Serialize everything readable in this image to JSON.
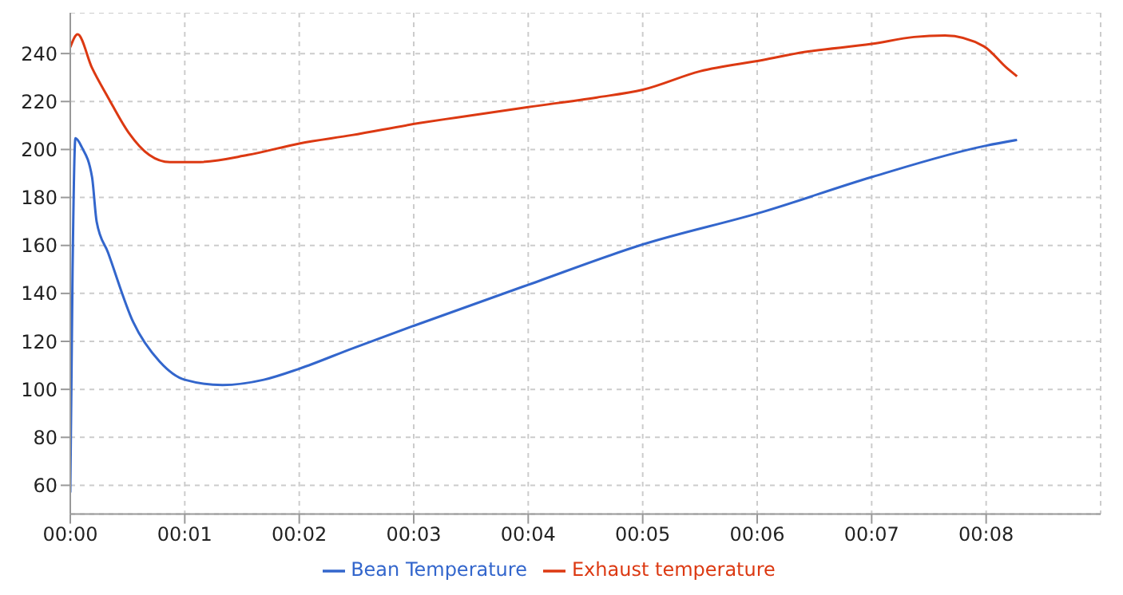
{
  "chart_data": {
    "type": "line",
    "xlim": [
      0,
      9
    ],
    "ylim": [
      48,
      257
    ],
    "xticks": [
      {
        "value": 0,
        "label": "00:00"
      },
      {
        "value": 1,
        "label": "00:01"
      },
      {
        "value": 2,
        "label": "00:02"
      },
      {
        "value": 3,
        "label": "00:03"
      },
      {
        "value": 4,
        "label": "00:04"
      },
      {
        "value": 5,
        "label": "00:05"
      },
      {
        "value": 6,
        "label": "00:06"
      },
      {
        "value": 7,
        "label": "00:07"
      },
      {
        "value": 8,
        "label": "00:08"
      }
    ],
    "yticks": [
      60,
      80,
      100,
      120,
      140,
      160,
      180,
      200,
      220,
      240
    ],
    "grid": true,
    "legend": "bottom",
    "marker": "none",
    "line_style": "solid",
    "series": [
      {
        "name": "Bean Temperature",
        "color": "#3366cc",
        "x": [
          0,
          0.02,
          0.045,
          0.1,
          0.19,
          0.23,
          0.33,
          0.55,
          0.78,
          1.0,
          1.33,
          1.69,
          2.0,
          2.46,
          3.0,
          4.0,
          5.0,
          6.05,
          7.0,
          8.0,
          8.27
        ],
        "values": [
          57,
          150,
          204.7,
          201,
          188.5,
          170,
          157,
          128,
          111.6,
          104,
          101.8,
          104,
          108.6,
          117,
          126.5,
          143.6,
          160.4,
          174,
          188.5,
          201.6,
          204
        ]
      },
      {
        "name": "Exhaust temperature",
        "color": "#dc3912",
        "x": [
          0,
          0.064,
          0.19,
          0.33,
          0.51,
          0.69,
          0.87,
          1.1,
          1.55,
          2.0,
          2.46,
          3.05,
          3.37,
          4.0,
          4.6,
          5.0,
          5.5,
          6.05,
          6.41,
          7.0,
          7.37,
          7.64,
          7.98,
          8.18,
          8.27
        ],
        "values": [
          242.6,
          248,
          234,
          221.7,
          207,
          197.7,
          194.7,
          194.7,
          197.7,
          202.5,
          206,
          211,
          213.3,
          217.7,
          221.7,
          224.9,
          232.6,
          237.3,
          240.6,
          244,
          246.9,
          247.5,
          243,
          234,
          230.5
        ]
      }
    ]
  }
}
